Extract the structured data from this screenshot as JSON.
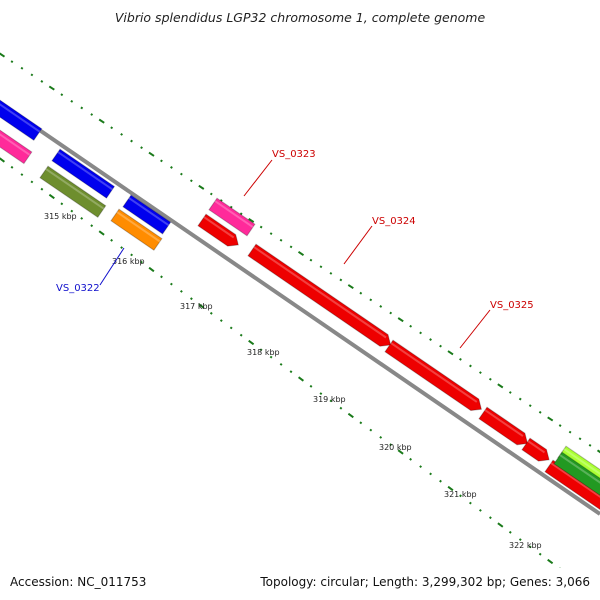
{
  "title": "Vibrio splendidus LGP32 chromosome 1, complete genome",
  "footer": {
    "accession": "Accession: NC_011753",
    "summary": "Topology: circular; Length: 3,299,302 bp; Genes: 3,066"
  },
  "tick_labels": [
    "315 kbp",
    "316 kbp",
    "317 kbp",
    "318 kbp",
    "319 kbp",
    "320 kbp",
    "321 kbp",
    "322 kbp"
  ],
  "gene_labels": [
    {
      "name": "VS_0322",
      "color": "#1010cc"
    },
    {
      "name": "VS_0323",
      "color": "#cc0000"
    },
    {
      "name": "VS_0324",
      "color": "#cc0000"
    },
    {
      "name": "VS_0325",
      "color": "#cc0000"
    }
  ],
  "colors": {
    "backbone": "#888888",
    "ticks": "#1a7a1a",
    "red": "#ee0000",
    "blue": "#0000ee",
    "magenta": "#ff2a9a",
    "olive": "#6e8e2e",
    "orange": "#ff8c00",
    "lime": "#aaff33",
    "green": "#229922"
  }
}
